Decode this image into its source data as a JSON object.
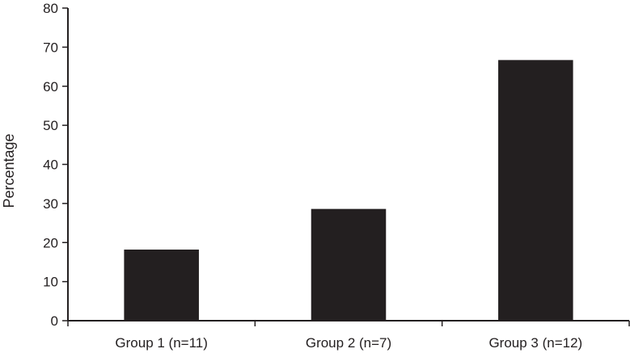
{
  "chart_data": {
    "type": "bar",
    "categories": [
      "Group 1 (n=11)",
      "Group 2 (n=7)",
      "Group 3 (n=12)"
    ],
    "values": [
      18.2,
      28.6,
      66.7
    ],
    "title": "",
    "xlabel": "",
    "ylabel": "Percentage",
    "ylim": [
      0,
      80
    ],
    "yticks": [
      0,
      10,
      20,
      30,
      40,
      50,
      60,
      70,
      80
    ],
    "grid": false,
    "bar_color": "#231f20"
  }
}
